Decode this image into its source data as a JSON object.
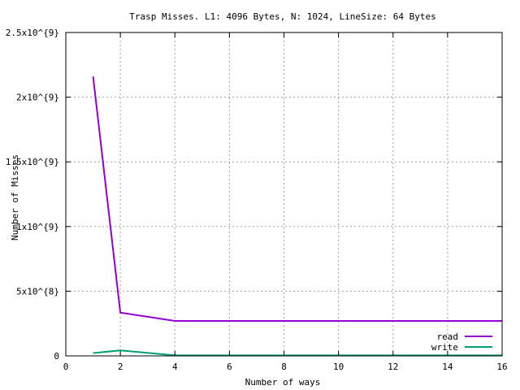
{
  "chart_data": {
    "type": "line",
    "title": "Trasp Misses. L1: 4096 Bytes, N: 1024, LineSize: 64 Bytes",
    "xlabel": "Number of ways",
    "ylabel": "Number of Misses",
    "xlim": [
      0,
      16
    ],
    "ylim": [
      0,
      2500000000
    ],
    "xticks": [
      0,
      2,
      4,
      6,
      8,
      10,
      12,
      14,
      16
    ],
    "xtick_labels": [
      "0",
      "2",
      "4",
      "6",
      "8",
      "10",
      "12",
      "14",
      "16"
    ],
    "yticks": [
      0,
      500000000,
      1000000000,
      1500000000,
      2000000000,
      2500000000
    ],
    "ytick_labels": [
      "0",
      "5x10^{8}",
      "1x10^{9}",
      "1.5x10^{9}",
      "2x10^{9}",
      "2.5x10^{9}"
    ],
    "grid": true,
    "legend_position": "bottom-right",
    "series": [
      {
        "name": "read",
        "color": "#9400d3",
        "x": [
          1,
          2,
          4,
          8,
          16
        ],
        "y": [
          2160000000,
          335000000,
          270000000,
          270000000,
          270000000
        ]
      },
      {
        "name": "write",
        "color": "#009e73",
        "x": [
          1,
          2,
          4,
          8,
          16
        ],
        "y": [
          22000000,
          42000000,
          4000000,
          4000000,
          4000000
        ]
      }
    ]
  }
}
